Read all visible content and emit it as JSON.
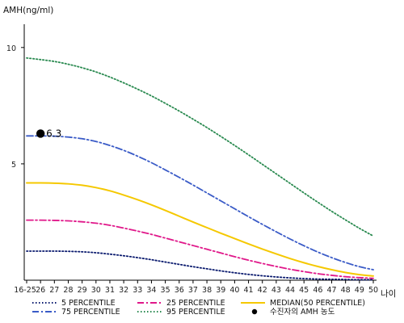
{
  "chart_data": {
    "type": "line",
    "ylabel": "AMH(ng/ml)",
    "xlabel": "나이",
    "ylim": [
      0,
      11
    ],
    "yticks": [
      5,
      10
    ],
    "categories": [
      "16-25",
      "26",
      "27",
      "28",
      "29",
      "30",
      "31",
      "32",
      "33",
      "34",
      "35",
      "36",
      "37",
      "38",
      "39",
      "40",
      "41",
      "42",
      "43",
      "44",
      "45",
      "46",
      "47",
      "48",
      "49",
      "50"
    ],
    "series": [
      {
        "name": "5 PERCENTILE",
        "color": "#0a1a6e",
        "dash": "1.5,2.5",
        "values": [
          1.25,
          1.25,
          1.25,
          1.24,
          1.22,
          1.18,
          1.12,
          1.05,
          0.97,
          0.88,
          0.78,
          0.68,
          0.58,
          0.49,
          0.4,
          0.32,
          0.25,
          0.19,
          0.14,
          0.1,
          0.07,
          0.05,
          0.04,
          0.03,
          0.02,
          0.02
        ]
      },
      {
        "name": "25 PERCENTILE",
        "color": "#e0188a",
        "dash": "8,3,2,3",
        "values": [
          2.58,
          2.58,
          2.57,
          2.55,
          2.51,
          2.45,
          2.36,
          2.24,
          2.11,
          1.97,
          1.81,
          1.65,
          1.49,
          1.33,
          1.17,
          1.01,
          0.86,
          0.72,
          0.59,
          0.47,
          0.37,
          0.28,
          0.21,
          0.15,
          0.11,
          0.08
        ]
      },
      {
        "name": "MEDIAN(50 PERCENTILE)",
        "color": "#f5c800",
        "dash": "",
        "values": [
          4.18,
          4.18,
          4.17,
          4.14,
          4.08,
          3.98,
          3.84,
          3.66,
          3.46,
          3.24,
          3.0,
          2.75,
          2.5,
          2.26,
          2.02,
          1.79,
          1.56,
          1.34,
          1.13,
          0.93,
          0.75,
          0.59,
          0.45,
          0.33,
          0.24,
          0.18
        ]
      },
      {
        "name": "75 PERCENTILE",
        "color": "#3a5bc7",
        "dash": "8,3,2,3",
        "values": [
          6.2,
          6.2,
          6.19,
          6.15,
          6.08,
          5.96,
          5.79,
          5.58,
          5.33,
          5.05,
          4.74,
          4.42,
          4.09,
          3.75,
          3.41,
          3.07,
          2.73,
          2.4,
          2.08,
          1.77,
          1.48,
          1.21,
          0.97,
          0.76,
          0.58,
          0.45
        ]
      },
      {
        "name": "95 PERCENTILE",
        "color": "#2a8a50",
        "dash": "1.5,2.5",
        "values": [
          9.55,
          9.48,
          9.4,
          9.28,
          9.13,
          8.95,
          8.73,
          8.48,
          8.21,
          7.92,
          7.6,
          7.27,
          6.92,
          6.56,
          6.18,
          5.79,
          5.39,
          4.98,
          4.57,
          4.16,
          3.75,
          3.35,
          2.96,
          2.59,
          2.23,
          1.9
        ]
      }
    ],
    "points": [
      {
        "name": "수진자의 AMH 농도",
        "category": "26",
        "value": 6.3,
        "label": "6.3",
        "color": "#000000"
      }
    ],
    "legend": {
      "placement": "bottom",
      "items": [
        {
          "label": "5 PERCENTILE",
          "color": "#0a1a6e",
          "dash": "1.5,2.5",
          "kind": "line"
        },
        {
          "label": "25 PERCENTILE",
          "color": "#e0188a",
          "dash": "8,3,2,3",
          "kind": "line"
        },
        {
          "label": "MEDIAN(50 PERCENTILE)",
          "color": "#f5c800",
          "dash": "",
          "kind": "line"
        },
        {
          "label": "75 PERCENTILE",
          "color": "#3a5bc7",
          "dash": "8,3,2,3",
          "kind": "line"
        },
        {
          "label": "95 PERCENTILE",
          "color": "#2a8a50",
          "dash": "1.5,2.5",
          "kind": "line"
        },
        {
          "label": "수진자의 AMH 농도",
          "color": "#000000",
          "dash": "",
          "kind": "dot"
        }
      ]
    },
    "grid": false
  }
}
